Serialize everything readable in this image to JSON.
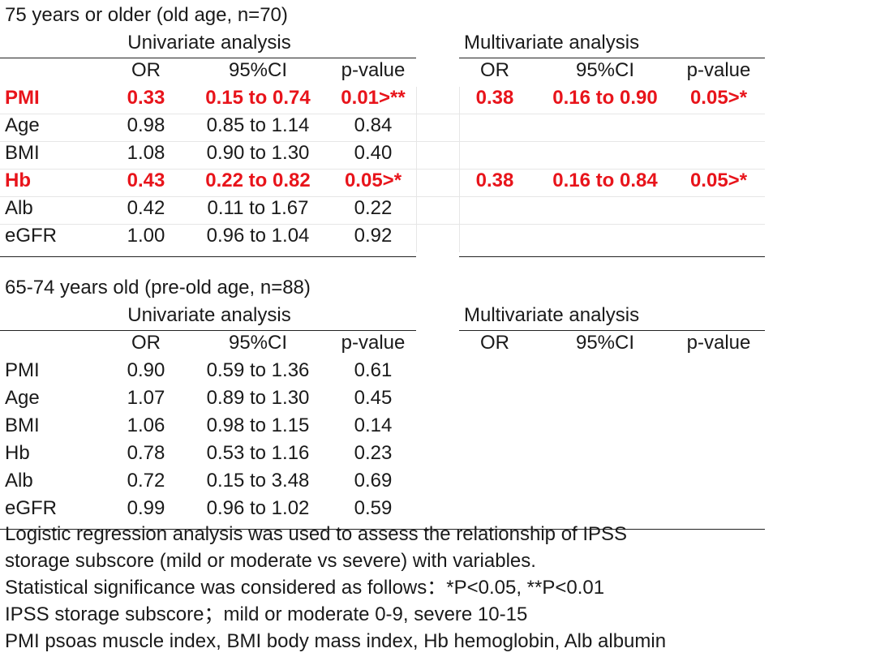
{
  "section1": {
    "title": "75 years or older (old age, n=70)",
    "univariate_heading": "Univariate analysis",
    "multivariate_heading": "Multivariate analysis",
    "columns": [
      "OR",
      "95%CI",
      "p-value"
    ],
    "rows": [
      {
        "name": "PMI",
        "or": "0.33",
        "ci": "0.15 to 0.74",
        "p": "0.01>**",
        "highlight": true,
        "m_or": "0.38",
        "m_ci": "0.16 to 0.90",
        "m_p": "0.05>*"
      },
      {
        "name": "Age",
        "or": "0.98",
        "ci": "0.85 to 1.14",
        "p": "0.84",
        "highlight": false,
        "m_or": "",
        "m_ci": "",
        "m_p": ""
      },
      {
        "name": "BMI",
        "or": "1.08",
        "ci": "0.90 to 1.30",
        "p": "0.40",
        "highlight": false,
        "m_or": "",
        "m_ci": "",
        "m_p": ""
      },
      {
        "name": "Hb",
        "or": "0.43",
        "ci": "0.22 to 0.82",
        "p": "0.05>*",
        "highlight": true,
        "m_or": "0.38",
        "m_ci": "0.16 to 0.84",
        "m_p": "0.05>*"
      },
      {
        "name": "Alb",
        "or": "0.42",
        "ci": "0.11 to 1.67",
        "p": "0.22",
        "highlight": false,
        "m_or": "",
        "m_ci": "",
        "m_p": ""
      },
      {
        "name": "eGFR",
        "or": "1.00",
        "ci": "0.96 to 1.04",
        "p": "0.92",
        "highlight": false,
        "m_or": "",
        "m_ci": "",
        "m_p": ""
      }
    ]
  },
  "section2": {
    "title": "65-74 years old  (pre-old age, n=88)",
    "univariate_heading": "Univariate analysis",
    "multivariate_heading": "Multivariate analysis",
    "columns": [
      "OR",
      "95%CI",
      "p-value"
    ],
    "rows": [
      {
        "name": "PMI",
        "or": "0.90",
        "ci": "0.59 to 1.36",
        "p": "0.61",
        "highlight": false,
        "m_or": "",
        "m_ci": "",
        "m_p": ""
      },
      {
        "name": "Age",
        "or": "1.07",
        "ci": "0.89 to 1.30",
        "p": "0.45",
        "highlight": false,
        "m_or": "",
        "m_ci": "",
        "m_p": ""
      },
      {
        "name": "BMI",
        "or": "1.06",
        "ci": "0.98 to 1.15",
        "p": "0.14",
        "highlight": false,
        "m_or": "",
        "m_ci": "",
        "m_p": ""
      },
      {
        "name": "Hb",
        "or": "0.78",
        "ci": "0.53 to 1.16",
        "p": "0.23",
        "highlight": false,
        "m_or": "",
        "m_ci": "",
        "m_p": ""
      },
      {
        "name": "Alb",
        "or": "0.72",
        "ci": "0.15 to 3.48",
        "p": "0.69",
        "highlight": false,
        "m_or": "",
        "m_ci": "",
        "m_p": ""
      },
      {
        "name": "eGFR",
        "or": "0.99",
        "ci": "0.96 to 1.02",
        "p": "0.59",
        "highlight": false,
        "m_or": "",
        "m_ci": "",
        "m_p": ""
      }
    ]
  },
  "footnotes": [
    "Logistic regression analysis was used to assess the relationship of IPSS",
    "storage subscore (mild or moderate vs severe) with variables.",
    "Statistical significance was considered as follows：*P<0.05, **P<0.01",
    "IPSS storage subscore；mild or moderate 0-9, severe 10-15",
    "PMI psoas muscle index, BMI body mass index, Hb hemoglobin, Alb albumin"
  ],
  "colors": {
    "highlight": "#e8141b",
    "text": "#1a1a1a",
    "rule": "#222222"
  }
}
